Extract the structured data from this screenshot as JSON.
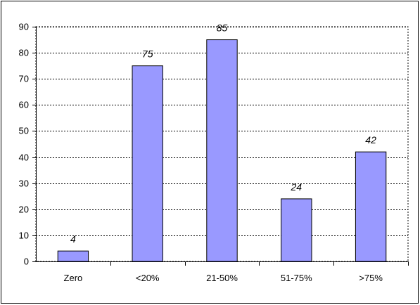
{
  "chart_data": {
    "type": "bar",
    "title": "",
    "xlabel": "",
    "ylabel": "",
    "categories": [
      "Zero",
      "<20%",
      "21-50%",
      "51-75%",
      ">75%"
    ],
    "values": [
      4,
      75,
      85,
      24,
      42
    ],
    "ylim": [
      0,
      90
    ],
    "yticks": [
      0,
      10,
      20,
      30,
      40,
      50,
      60,
      70,
      80,
      90
    ],
    "grid": true,
    "grid_style": "dotted",
    "bar_color": "#9999ff",
    "bar_edge_color": "#000000",
    "data_labels": [
      "4",
      "75",
      "85",
      "24",
      "42"
    ]
  }
}
